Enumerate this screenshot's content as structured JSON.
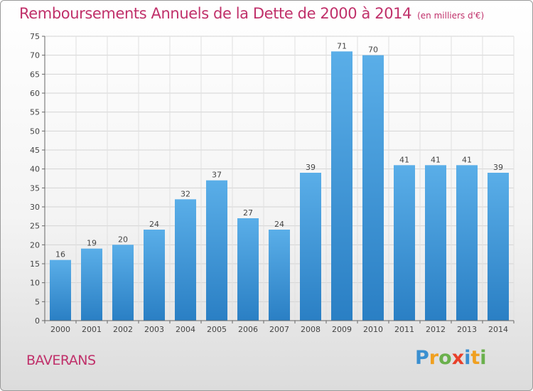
{
  "chart_data": {
    "type": "bar",
    "title": "Remboursements Annuels de la Dette de 2000 à 2014",
    "subtitle": "(en milliers d'€)",
    "categories": [
      "2000",
      "2001",
      "2002",
      "2003",
      "2004",
      "2005",
      "2006",
      "2007",
      "2008",
      "2009",
      "2010",
      "2011",
      "2012",
      "2013",
      "2014"
    ],
    "values": [
      16,
      19,
      20,
      24,
      32,
      37,
      27,
      24,
      39,
      71,
      70,
      41,
      41,
      41,
      39
    ],
    "xlabel": "",
    "ylabel": "",
    "ylim": [
      0,
      75
    ],
    "yticks": [
      0,
      5,
      10,
      15,
      20,
      25,
      30,
      35,
      40,
      45,
      50,
      55,
      60,
      65,
      70,
      75
    ],
    "grid": true,
    "bar_color_top": "#5aaee8",
    "bar_color_bottom": "#2a7fc4"
  },
  "town": "BAVERANS",
  "logo": {
    "letters": [
      "P",
      "r",
      "o",
      "x",
      "i",
      "t",
      "i"
    ],
    "colors": [
      "#3a8fd0",
      "#f0a020",
      "#6ab04c",
      "#e8402a",
      "#3a8fd0",
      "#f0a020",
      "#6ab04c"
    ]
  }
}
